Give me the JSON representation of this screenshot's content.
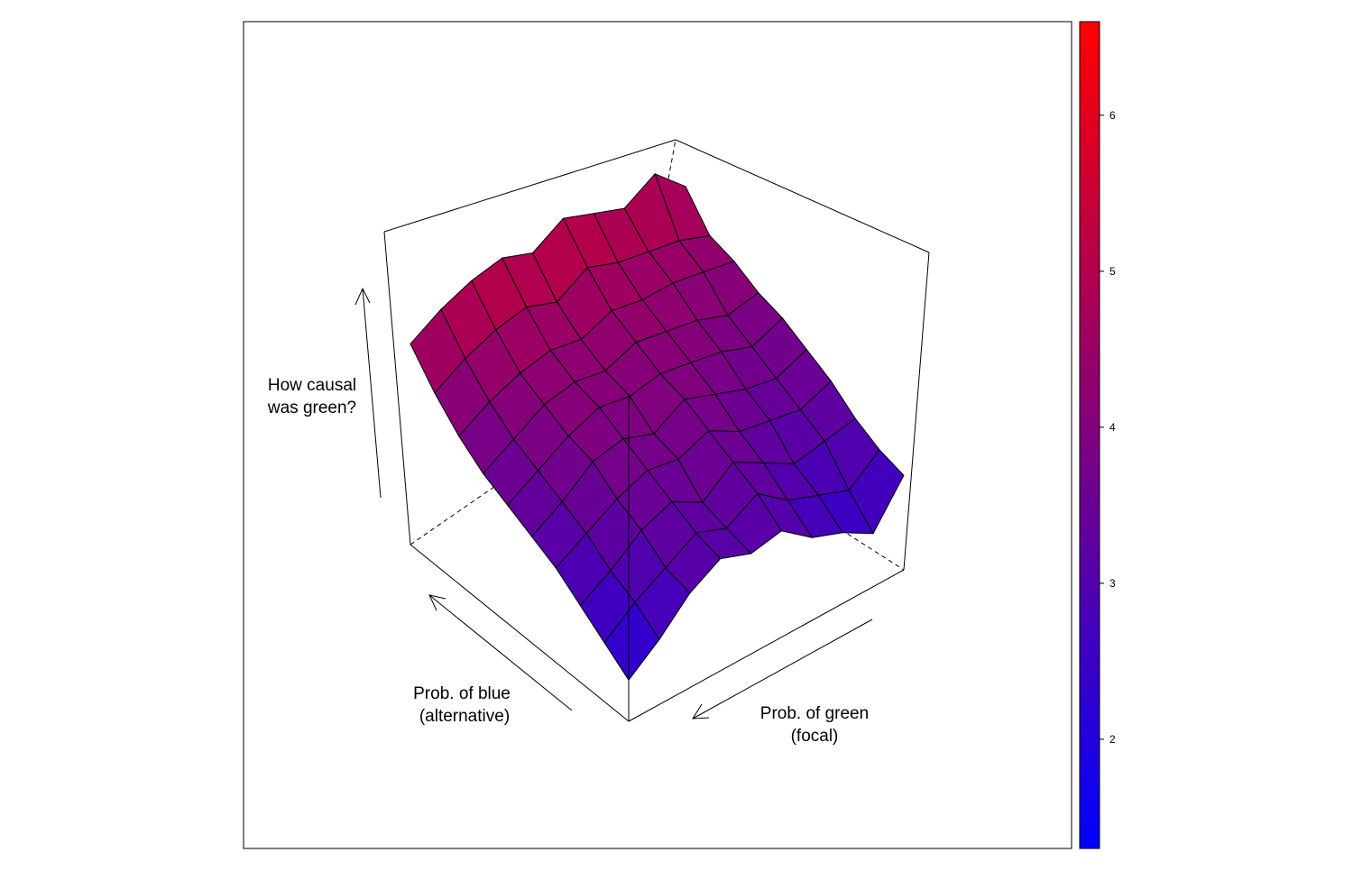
{
  "chart_data": {
    "type": "surface3d",
    "title": "",
    "zlabel_lines": [
      "How causal",
      "was green?"
    ],
    "xlabel_lines": [
      "Prob. of blue",
      "(alternative)"
    ],
    "ylabel_lines": [
      "Prob. of green",
      "(focal)"
    ],
    "colorbar": {
      "min": 1.3,
      "max": 6.6,
      "ticks": [
        2,
        3,
        4,
        5,
        6
      ],
      "low_color": "#0000ff",
      "high_color": "#ff0000"
    },
    "grid_rows": 10,
    "grid_cols": 10,
    "z": [
      [
        2.0,
        2.4,
        2.9,
        3.2,
        3.0,
        3.1,
        2.7,
        2.5,
        2.2,
        2.9
      ],
      [
        2.3,
        2.7,
        3.0,
        3.3,
        3.1,
        3.4,
        3.0,
        2.8,
        2.6,
        3.0
      ],
      [
        2.6,
        2.9,
        3.3,
        3.5,
        3.2,
        3.6,
        3.3,
        3.0,
        3.1,
        3.2
      ],
      [
        2.9,
        3.2,
        3.5,
        3.7,
        3.6,
        3.8,
        3.5,
        3.4,
        3.3,
        3.5
      ],
      [
        3.1,
        3.4,
        3.8,
        3.9,
        3.7,
        4.0,
        3.8,
        3.6,
        3.5,
        3.7
      ],
      [
        3.3,
        3.6,
        3.9,
        4.1,
        4.0,
        4.1,
        4.0,
        3.9,
        3.7,
        3.9
      ],
      [
        3.5,
        3.8,
        4.1,
        4.2,
        4.1,
        4.3,
        4.2,
        4.1,
        3.9,
        4.0
      ],
      [
        3.8,
        4.1,
        4.3,
        4.4,
        4.3,
        4.5,
        4.4,
        4.4,
        4.3,
        4.2
      ],
      [
        4.2,
        4.5,
        4.7,
        4.8,
        4.6,
        4.9,
        4.7,
        4.6,
        4.5,
        4.3
      ],
      [
        4.7,
        5.0,
        5.2,
        5.3,
        5.1,
        5.4,
        5.2,
        5.0,
        5.3,
        4.8
      ]
    ],
    "zlim": [
      1.3,
      6.6
    ]
  }
}
